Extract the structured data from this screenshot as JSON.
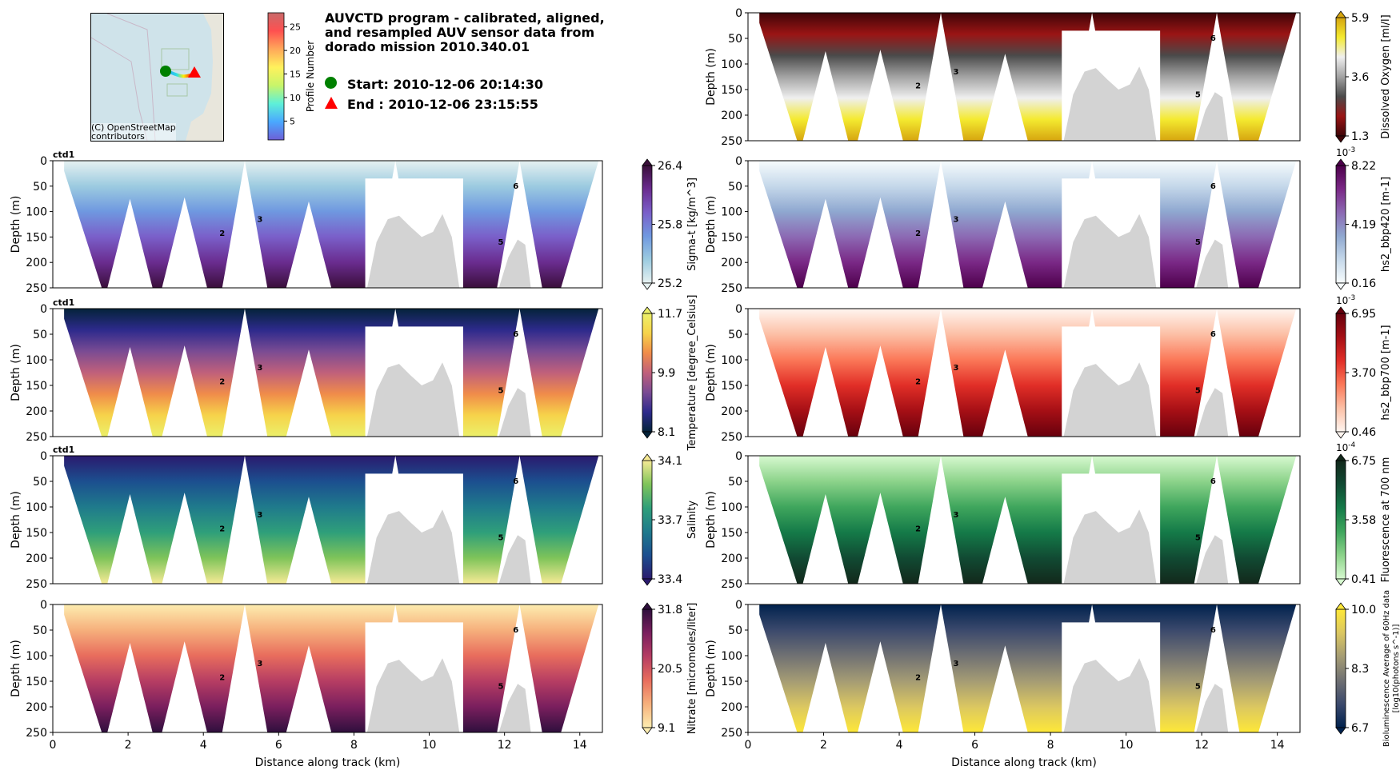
{
  "header": {
    "title": "AUVCTD program - calibrated, aligned,\nand resampled AUV sensor data from\ndorado mission 2010.340.01",
    "start_label": "Start: 2010-12-06 20:14:30",
    "end_label": "End  : 2010-12-06 23:15:55",
    "map_attribution": "(C) OpenStreetMap\ncontributors",
    "profile_colorbar": {
      "label": "Profile Number",
      "ticks": [
        5,
        10,
        15,
        20,
        25
      ],
      "range": [
        1,
        28
      ]
    }
  },
  "chart_data": [
    {
      "type": "heatmap",
      "panel": "left-1",
      "subtitle": "ctd1",
      "xlabel": "",
      "ylabel": "Depth (m)",
      "xlim": [
        0,
        14.6
      ],
      "ylim": [
        250,
        0
      ],
      "yticks": [
        0,
        50,
        100,
        150,
        200,
        250
      ],
      "xticks": [],
      "colorbar": {
        "label": "Sigma-t [kg/m^3]",
        "min": 25.2,
        "mid": 25.8,
        "max": 26.4,
        "ticks": [
          "25.2",
          "25.8",
          "26.4"
        ],
        "colormap": "dense",
        "exponent": ""
      },
      "profile_labels": [
        {
          "text": "2",
          "x": 4.5,
          "y": 148
        },
        {
          "text": "3",
          "x": 5.5,
          "y": 120
        },
        {
          "text": "5",
          "x": 11.9,
          "y": 165
        },
        {
          "text": "6",
          "x": 12.3,
          "y": 55
        }
      ]
    },
    {
      "type": "heatmap",
      "panel": "left-2",
      "subtitle": "ctd1",
      "xlabel": "",
      "ylabel": "Depth (m)",
      "xlim": [
        0,
        14.6
      ],
      "ylim": [
        250,
        0
      ],
      "yticks": [
        0,
        50,
        100,
        150,
        200,
        250
      ],
      "xticks": [],
      "colorbar": {
        "label": "Temperature [degree_Celsius]",
        "min": 8.1,
        "mid": 9.9,
        "max": 11.7,
        "ticks": [
          "8.1",
          "9.9",
          "11.7"
        ],
        "colormap": "thermal",
        "exponent": ""
      },
      "profile_labels": [
        {
          "text": "2",
          "x": 4.5,
          "y": 148
        },
        {
          "text": "3",
          "x": 5.5,
          "y": 120
        },
        {
          "text": "5",
          "x": 11.9,
          "y": 165
        },
        {
          "text": "6",
          "x": 12.3,
          "y": 55
        }
      ]
    },
    {
      "type": "heatmap",
      "panel": "left-3",
      "subtitle": "ctd1",
      "xlabel": "",
      "ylabel": "Depth (m)",
      "xlim": [
        0,
        14.6
      ],
      "ylim": [
        250,
        0
      ],
      "yticks": [
        0,
        50,
        100,
        150,
        200,
        250
      ],
      "xticks": [],
      "colorbar": {
        "label": "Salinity",
        "min": 33.4,
        "mid": 33.7,
        "max": 34.1,
        "ticks": [
          "33.4",
          "33.7",
          "34.1"
        ],
        "colormap": "haline",
        "exponent": ""
      },
      "profile_labels": [
        {
          "text": "2",
          "x": 4.5,
          "y": 148
        },
        {
          "text": "3",
          "x": 5.5,
          "y": 120
        },
        {
          "text": "5",
          "x": 11.9,
          "y": 165
        },
        {
          "text": "6",
          "x": 12.3,
          "y": 55
        }
      ]
    },
    {
      "type": "heatmap",
      "panel": "left-4",
      "subtitle": "",
      "xlabel": "Distance along track (km)",
      "ylabel": "Depth (m)",
      "xlim": [
        0,
        14.6
      ],
      "ylim": [
        250,
        0
      ],
      "yticks": [
        0,
        50,
        100,
        150,
        200,
        250
      ],
      "xticks": [
        0,
        2,
        4,
        6,
        8,
        10,
        12,
        14
      ],
      "colorbar": {
        "label": "Nitrate [micromoles/liter]",
        "min": 9.1,
        "mid": 20.5,
        "max": 31.8,
        "ticks": [
          "9.1",
          "20.5",
          "31.8"
        ],
        "colormap": "matter",
        "exponent": ""
      },
      "profile_labels": [
        {
          "text": "2",
          "x": 4.5,
          "y": 148
        },
        {
          "text": "3",
          "x": 5.5,
          "y": 120
        },
        {
          "text": "5",
          "x": 11.9,
          "y": 165
        },
        {
          "text": "6",
          "x": 12.3,
          "y": 55
        }
      ]
    },
    {
      "type": "heatmap",
      "panel": "right-0",
      "subtitle": "",
      "xlabel": "",
      "ylabel": "Depth (m)",
      "xlim": [
        0,
        14.6
      ],
      "ylim": [
        250,
        0
      ],
      "yticks": [
        0,
        50,
        100,
        150,
        200,
        250
      ],
      "xticks": [],
      "colorbar": {
        "label": "Dissolved Oxygen [ml/l]",
        "min": 1.3,
        "mid": 3.6,
        "max": 5.9,
        "ticks": [
          "1.3",
          "3.6",
          "5.9"
        ],
        "colormap": "oxy",
        "exponent": ""
      },
      "profile_labels": [
        {
          "text": "2",
          "x": 4.5,
          "y": 148
        },
        {
          "text": "3",
          "x": 5.5,
          "y": 120
        },
        {
          "text": "5",
          "x": 11.9,
          "y": 165
        },
        {
          "text": "6",
          "x": 12.3,
          "y": 55
        }
      ]
    },
    {
      "type": "heatmap",
      "panel": "right-1",
      "subtitle": "",
      "xlabel": "",
      "ylabel": "Depth (m)",
      "xlim": [
        0,
        14.6
      ],
      "ylim": [
        250,
        0
      ],
      "yticks": [
        0,
        50,
        100,
        150,
        200,
        250
      ],
      "xticks": [],
      "colorbar": {
        "label": "hs2_bbp420 [m-1]",
        "min": 0.16,
        "mid": 4.19,
        "max": 8.22,
        "ticks": [
          "0.16",
          "4.19",
          "8.22"
        ],
        "colormap": "BuPu",
        "exponent": "10^-3"
      },
      "profile_labels": [
        {
          "text": "2",
          "x": 4.5,
          "y": 148
        },
        {
          "text": "3",
          "x": 5.5,
          "y": 120
        },
        {
          "text": "5",
          "x": 11.9,
          "y": 165
        },
        {
          "text": "6",
          "x": 12.3,
          "y": 55
        }
      ]
    },
    {
      "type": "heatmap",
      "panel": "right-2",
      "subtitle": "",
      "xlabel": "",
      "ylabel": "Depth (m)",
      "xlim": [
        0,
        14.6
      ],
      "ylim": [
        250,
        0
      ],
      "yticks": [
        0,
        50,
        100,
        150,
        200,
        250
      ],
      "xticks": [],
      "colorbar": {
        "label": "hs2_bbp700 [m-1]",
        "min": 0.46,
        "mid": 3.7,
        "max": 6.95,
        "ticks": [
          "0.46",
          "3.70",
          "6.95"
        ],
        "colormap": "Reds",
        "exponent": "10^-3"
      },
      "profile_labels": [
        {
          "text": "2",
          "x": 4.5,
          "y": 148
        },
        {
          "text": "3",
          "x": 5.5,
          "y": 120
        },
        {
          "text": "5",
          "x": 11.9,
          "y": 165
        },
        {
          "text": "6",
          "x": 12.3,
          "y": 55
        }
      ]
    },
    {
      "type": "heatmap",
      "panel": "right-3",
      "subtitle": "",
      "xlabel": "",
      "ylabel": "Depth (m)",
      "xlim": [
        0,
        14.6
      ],
      "ylim": [
        250,
        0
      ],
      "yticks": [
        0,
        50,
        100,
        150,
        200,
        250
      ],
      "xticks": [],
      "colorbar": {
        "label": "Fluorescence at 700 nm",
        "min": 0.41,
        "mid": 3.58,
        "max": 6.75,
        "ticks": [
          "0.41",
          "3.58",
          "6.75"
        ],
        "colormap": "algae",
        "exponent": "10^-4"
      },
      "profile_labels": [
        {
          "text": "2",
          "x": 4.5,
          "y": 148
        },
        {
          "text": "3",
          "x": 5.5,
          "y": 120
        },
        {
          "text": "5",
          "x": 11.9,
          "y": 165
        },
        {
          "text": "6",
          "x": 12.3,
          "y": 55
        }
      ]
    },
    {
      "type": "heatmap",
      "panel": "right-4",
      "subtitle": "",
      "xlabel": "Distance along track (km)",
      "ylabel": "Depth (m)",
      "xlim": [
        0,
        14.6
      ],
      "ylim": [
        250,
        0
      ],
      "yticks": [
        0,
        50,
        100,
        150,
        200,
        250
      ],
      "xticks": [
        0,
        2,
        4,
        6,
        8,
        10,
        12,
        14
      ],
      "colorbar": {
        "label": "Bioluminescence Average of 60Hz data\n[log10(photons s^-1)]",
        "min": 6.7,
        "mid": 8.3,
        "max": 10.0,
        "ticks": [
          "6.7",
          "8.3",
          "10.0"
        ],
        "colormap": "cividis",
        "exponent": ""
      },
      "profile_labels": [
        {
          "text": "2",
          "x": 4.5,
          "y": 148
        },
        {
          "text": "3",
          "x": 5.5,
          "y": 120
        },
        {
          "text": "5",
          "x": 11.9,
          "y": 165
        },
        {
          "text": "6",
          "x": 12.3,
          "y": 55
        }
      ]
    }
  ],
  "colors": {
    "start_marker": "#008000",
    "end_marker": "#ff0000",
    "bathymetry": "#d3d3d3",
    "map_water": "#cfe3ea"
  }
}
